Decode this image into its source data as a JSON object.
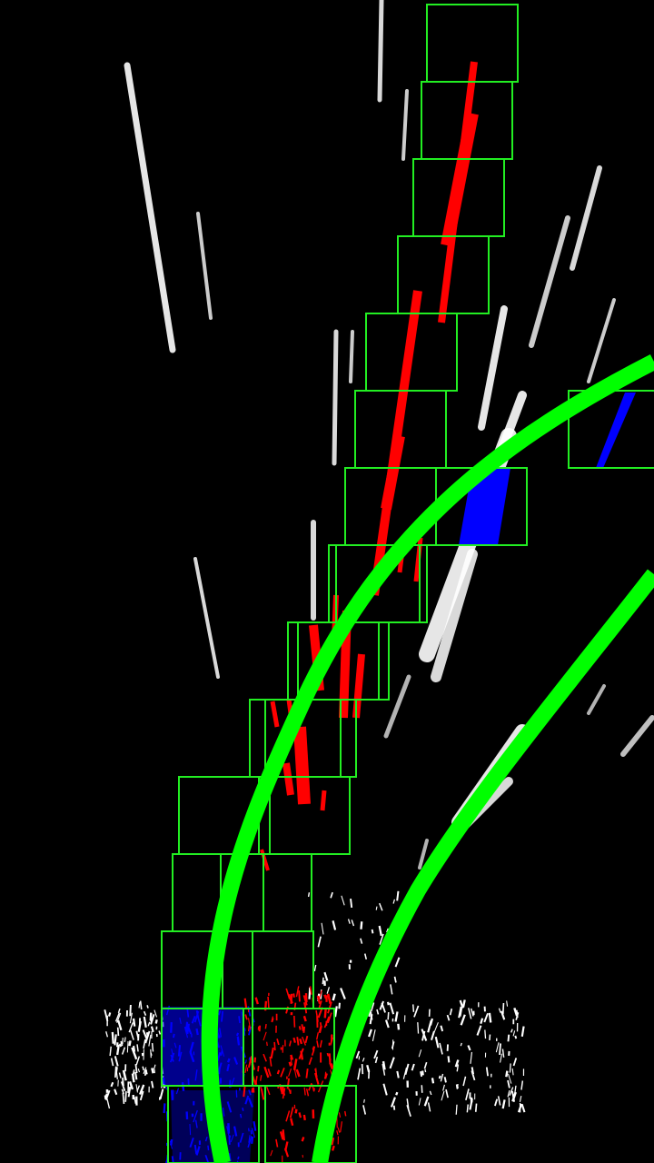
{
  "colors": {
    "background": "#000000",
    "window_box": "#22ee22",
    "fitted_curve": "#00ff00",
    "left_lane_pixels": "#ff0000",
    "right_lane_pixels": "#0000ff",
    "binary_edges": "#ffffff"
  },
  "legend": []
}
